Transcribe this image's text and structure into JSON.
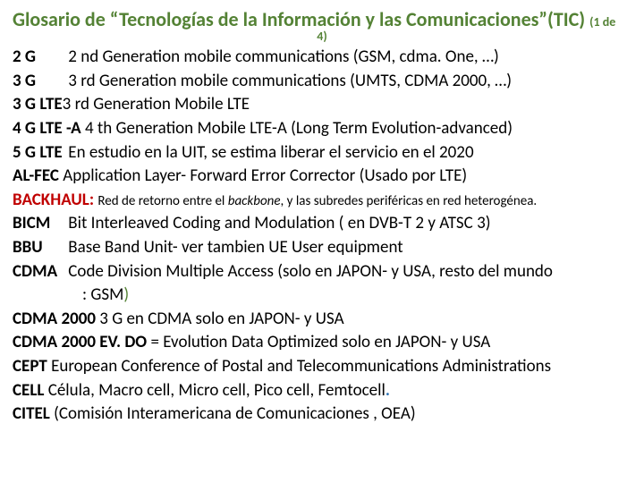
{
  "colors": {
    "title_green": "#548235",
    "body_text": "#000000",
    "backhaul_red": "#c00000",
    "blue_dot": "#2e74b5",
    "background": "#ffffff"
  },
  "typography": {
    "title_fontsize": 22,
    "body_fontsize": 19,
    "small_fontsize": 15,
    "paren_fontsize": 14,
    "font_family": "Calibri"
  },
  "title": {
    "main": "Glosario de “Tecnologías de la Información y las Comunicaciones”(TIC)",
    "paren_start": "(1 de",
    "paren_end": "4)"
  },
  "entries": [
    {
      "term": "2 G",
      "def": "2 nd  Generation mobile communications (GSM, cdma. One, …)"
    },
    {
      "term": "3 G",
      "def": "3 rd Generation mobile communications (UMTS, CDMA 2000, …)"
    },
    {
      "term": "3 G LTE",
      "def": "3 rd  Generation  Mobile LTE",
      "tight": true
    },
    {
      "term": "4 G LTE -A",
      "def": " 4 th Generation  Mobile LTE-A (Long Term Evolution-advanced)",
      "tight": true
    },
    {
      "term": "5 G LTE",
      "def": "En estudio en la UIT, se estima liberar el servicio en el 2020"
    },
    {
      "term": "AL-FEC",
      "def": " Application Layer- Forward Error Corrector   (Usado por LTE)",
      "tight": true
    },
    {
      "term": "BACKHAUL:",
      "def": "Red de retorno  entre el ",
      "italic_word": "backbone",
      "def_after": ", y las subredes periféricas en red heterogénea.",
      "style": "backhaul"
    },
    {
      "term": " BICM",
      "def": "Bit Interleaved Coding and Modulation ( en DVB-T 2 y ATSC 3)"
    },
    {
      "term": "BBU",
      "def": "   Base Band Unit- ver tambien UE User equipment"
    },
    {
      "term": "CDMA",
      "def": "  Code Division Multiple Access (solo en JAPON- y USA, resto del mundo",
      "cont": ": GSM",
      "cont_paren": ")"
    },
    {
      "term": "CDMA 2000",
      "def": "  3 G en CDMA solo en JAPON- y USA",
      "tight": true
    },
    {
      "term": "CDMA 2000 EV. DO",
      "def": " = Evolution Data  Optimized solo en JAPON- y USA",
      "tight": true
    },
    {
      "term": "CEPT",
      "def": "  European Conference of Postal and Telecommunications Administrations",
      "tight": true
    },
    {
      "term": "CELL",
      "def": " Célula, Macro cell, Micro cell, Pico cell, Femtocell",
      "tight": true,
      "blue_dot": "."
    },
    {
      "term": "CITEL",
      "def": " (Comisión Interamericana de Comunicaciones , OEA)",
      "tight": true
    }
  ]
}
